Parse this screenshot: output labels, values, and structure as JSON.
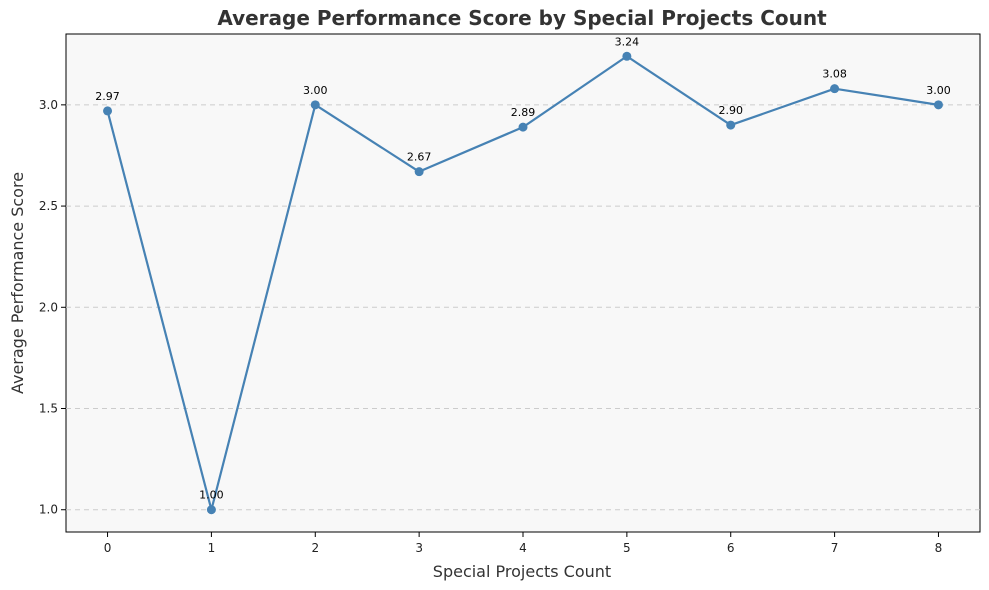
{
  "chart_data": {
    "type": "line",
    "title": "Average Performance Score by Special Projects Count",
    "xlabel": "Special Projects Count",
    "ylabel": "Average Performance Score",
    "x": [
      0,
      1,
      2,
      3,
      4,
      5,
      6,
      7,
      8
    ],
    "series": [
      {
        "values": [
          2.97,
          1.0,
          3.0,
          2.67,
          2.89,
          3.24,
          2.9,
          3.08,
          3.0
        ],
        "data_labels": [
          "2.97",
          "1.00",
          "3.00",
          "2.67",
          "2.89",
          "3.24",
          "2.90",
          "3.08",
          "3.00"
        ],
        "color": "#4682b4",
        "marker": "circle"
      }
    ],
    "xticks": [
      "0",
      "1",
      "2",
      "3",
      "4",
      "5",
      "6",
      "7",
      "8"
    ],
    "yticks": [
      "1.0",
      "1.5",
      "2.0",
      "2.5",
      "3.0"
    ],
    "ytick_values": [
      1.0,
      1.5,
      2.0,
      2.5,
      3.0
    ],
    "xlim": [
      -0.4,
      8.4
    ],
    "ylim": [
      0.89,
      3.35
    ],
    "grid": "horizontal-dashed",
    "legend": "none",
    "colors": {
      "plot_background": "#f8f8f8",
      "line": "#4682b4",
      "grid": "#cccccc"
    }
  }
}
